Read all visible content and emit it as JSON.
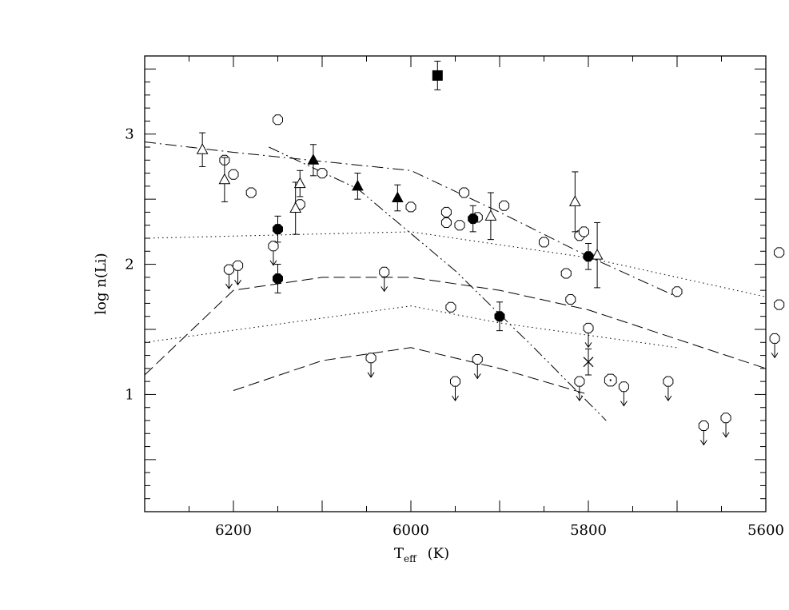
{
  "chart_data": {
    "type": "scatter",
    "xlabel": "T",
    "xlabel_sub": "eff",
    "xlabel_unit": "(K)",
    "ylabel": "log n(Li)",
    "xlim": [
      6300,
      5600
    ],
    "ylim": [
      0.1,
      3.6
    ],
    "x_ticks": [
      "6200",
      "6000",
      "5800",
      "5600"
    ],
    "y_ticks": [
      "1",
      "2",
      "3"
    ],
    "grid": false,
    "curves": [
      {
        "style": "dotted",
        "points": [
          [
            6300,
            2.2
          ],
          [
            6000,
            2.25
          ],
          [
            5800,
            2.05
          ],
          [
            5600,
            1.75
          ]
        ]
      },
      {
        "style": "dotted",
        "points": [
          [
            6300,
            1.4
          ],
          [
            6000,
            1.68
          ],
          [
            5900,
            1.55
          ],
          [
            5700,
            1.36
          ]
        ]
      },
      {
        "style": "dashed",
        "points": [
          [
            6300,
            1.15
          ],
          [
            6200,
            1.8
          ],
          [
            6100,
            1.9
          ],
          [
            6000,
            1.9
          ],
          [
            5900,
            1.8
          ],
          [
            5800,
            1.65
          ],
          [
            5600,
            1.2
          ]
        ]
      },
      {
        "style": "dashed",
        "points": [
          [
            6200,
            1.03
          ],
          [
            6100,
            1.26
          ],
          [
            6000,
            1.36
          ],
          [
            5900,
            1.2
          ],
          [
            5800,
            1.0
          ]
        ]
      },
      {
        "style": "dashdot",
        "points": [
          [
            6300,
            2.94
          ],
          [
            6200,
            2.86
          ],
          [
            6000,
            2.72
          ],
          [
            5900,
            2.4
          ],
          [
            5800,
            2.06
          ],
          [
            5700,
            1.75
          ]
        ]
      },
      {
        "style": "dashdotdot",
        "points": [
          [
            6160,
            2.9
          ],
          [
            6060,
            2.58
          ],
          [
            5950,
            1.95
          ],
          [
            5860,
            1.35
          ],
          [
            5780,
            0.8
          ]
        ]
      }
    ],
    "open_circles": [
      [
        6150,
        3.11
      ],
      [
        6100,
        2.7
      ],
      [
        6210,
        2.8
      ],
      [
        6180,
        2.55
      ],
      [
        6200,
        2.69
      ],
      [
        6125,
        2.46
      ],
      [
        6000,
        2.44
      ],
      [
        5940,
        2.55
      ],
      [
        5960,
        2.4
      ],
      [
        5960,
        2.32
      ],
      [
        5945,
        2.3
      ],
      [
        5895,
        2.45
      ],
      [
        5925,
        2.36
      ],
      [
        5850,
        2.17
      ],
      [
        5810,
        2.22
      ],
      [
        5805,
        2.25
      ],
      [
        5825,
        1.93
      ],
      [
        5820,
        1.73
      ],
      [
        5700,
        1.79
      ],
      [
        5585,
        2.09
      ],
      [
        5585,
        1.69
      ],
      [
        5955,
        1.67
      ]
    ],
    "upper_limits": [
      [
        6205,
        1.96
      ],
      [
        6195,
        1.99
      ],
      [
        6155,
        2.14
      ],
      [
        6030,
        1.94
      ],
      [
        6045,
        1.28
      ],
      [
        5950,
        1.1
      ],
      [
        5925,
        1.27
      ],
      [
        5800,
        1.51
      ],
      [
        5810,
        1.1
      ],
      [
        5760,
        1.06
      ],
      [
        5710,
        1.1
      ],
      [
        5670,
        0.76
      ],
      [
        5645,
        0.82
      ],
      [
        5590,
        1.43
      ]
    ],
    "open_triangles": [
      {
        "x": 6235,
        "y": 2.88,
        "err": 0.13
      },
      {
        "x": 6210,
        "y": 2.65,
        "err": 0.17
      },
      {
        "x": 6130,
        "y": 2.43,
        "err": 0.2
      },
      {
        "x": 6125,
        "y": 2.62,
        "err": 0.1
      },
      {
        "x": 5910,
        "y": 2.37,
        "err": 0.18
      },
      {
        "x": 5815,
        "y": 2.48,
        "err": 0.23
      },
      {
        "x": 5790,
        "y": 2.07,
        "err": 0.25
      }
    ],
    "filled_triangles": [
      {
        "x": 6110,
        "y": 2.8,
        "err": 0.12
      },
      {
        "x": 6060,
        "y": 2.6,
        "err": 0.1
      },
      {
        "x": 6015,
        "y": 2.51,
        "err": 0.1
      }
    ],
    "filled_circles": [
      {
        "x": 6150,
        "y": 2.27,
        "err": 0.1
      },
      {
        "x": 6150,
        "y": 1.89,
        "err": 0.11
      },
      {
        "x": 5930,
        "y": 2.35,
        "err": 0.1
      },
      {
        "x": 5900,
        "y": 1.6,
        "err": 0.11
      },
      {
        "x": 5800,
        "y": 2.06,
        "err": 0.1
      }
    ],
    "filled_squares": [
      {
        "x": 5970,
        "y": 3.45,
        "err": 0.11
      }
    ],
    "crosses": [
      {
        "x": 5800,
        "y": 1.25,
        "err": 0.1
      }
    ],
    "circles_with_dot": [
      [
        5775,
        1.11
      ]
    ]
  }
}
